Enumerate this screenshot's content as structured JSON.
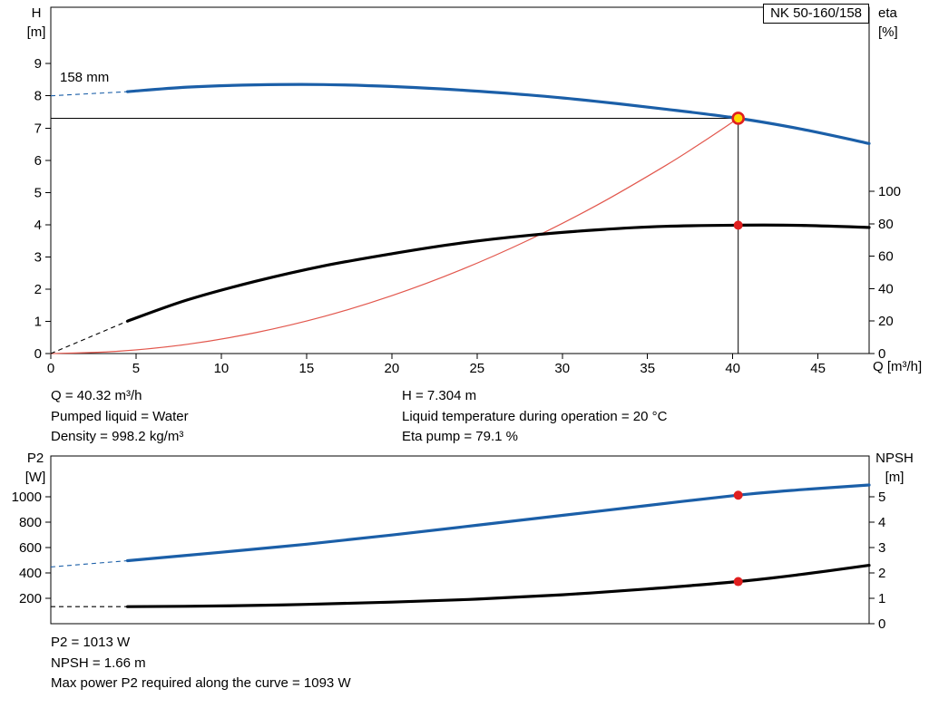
{
  "header": {
    "model_box": "NK 50-160/158"
  },
  "axes_titles": {
    "top_left_line1": "H",
    "top_left_line2": "[m]",
    "top_right_line1": "eta",
    "top_right_line2": "[%]",
    "bottom_left_line1": "P2",
    "bottom_left_line2": "[W]",
    "bottom_right_line1": "NPSH",
    "bottom_right_line2": "[m]",
    "x_label": "Q [m³/h]"
  },
  "annotations": {
    "impeller_diameter": "158 mm"
  },
  "mid_info": {
    "left": [
      "Q = 40.32 m³/h",
      "Pumped liquid = Water",
      "Density = 998.2 kg/m³"
    ],
    "right": [
      "H = 7.304 m",
      "Liquid temperature during operation = 20 °C",
      "Eta pump = 79.1 %"
    ]
  },
  "bottom_info": [
    "P2 = 1013 W",
    "NPSH = 1.66 m",
    "Max power P2 required along the curve = 1093 W"
  ],
  "colors": {
    "curve_blue": "#1b5fa8",
    "curve_black": "#000000",
    "system_red": "#e2574d",
    "dot_red": "#e01f1f",
    "duty_yellow": "#ffd800"
  },
  "chart_data": [
    {
      "type": "line",
      "name": "qh-eta-chart",
      "x": {
        "min": 0,
        "max": 48,
        "ticks": [
          0,
          5,
          10,
          15,
          20,
          25,
          30,
          35,
          40,
          45
        ]
      },
      "y_left": {
        "label": "H [m]",
        "min": 0,
        "max": 10.75,
        "ticks": [
          0,
          1,
          2,
          3,
          4,
          5,
          6,
          7,
          8,
          9
        ]
      },
      "y_right": {
        "label": "eta [%]",
        "min": 0,
        "max": 213.4,
        "ticks": [
          0,
          20,
          40,
          60,
          80,
          100
        ]
      },
      "series": [
        {
          "name": "system-curve",
          "axis": "left",
          "color": "system_red",
          "width": 1.2,
          "points": [
            [
              0,
              0
            ],
            [
              4,
              0.072
            ],
            [
              8,
              0.287
            ],
            [
              12,
              0.646
            ],
            [
              16,
              1.149
            ],
            [
              20,
              1.795
            ],
            [
              24,
              2.585
            ],
            [
              28,
              3.519
            ],
            [
              32,
              4.596
            ],
            [
              36,
              5.817
            ],
            [
              38.2,
              6.553
            ],
            [
              40.32,
              7.304
            ]
          ]
        },
        {
          "name": "efficiency-curve",
          "axis": "right",
          "color": "curve_black",
          "width": 3.2,
          "lead": [
            [
              0,
              0
            ],
            [
              4.5,
              20
            ]
          ],
          "points": [
            [
              4.5,
              20
            ],
            [
              8,
              33
            ],
            [
              12,
              44.5
            ],
            [
              16,
              54
            ],
            [
              20,
              61.5
            ],
            [
              24,
              68
            ],
            [
              28,
              72.8
            ],
            [
              32,
              76.2
            ],
            [
              36,
              78.4
            ],
            [
              40.32,
              79.1
            ],
            [
              44,
              79.0
            ],
            [
              48,
              77.7
            ]
          ]
        },
        {
          "name": "head-curve-158mm",
          "axis": "left",
          "color": "curve_blue",
          "width": 3.2,
          "lead": [
            [
              0,
              8.0
            ],
            [
              4.5,
              8.13
            ]
          ],
          "points": [
            [
              4.5,
              8.13
            ],
            [
              8,
              8.27
            ],
            [
              12,
              8.34
            ],
            [
              16,
              8.35
            ],
            [
              20,
              8.29
            ],
            [
              24,
              8.18
            ],
            [
              28,
              8.03
            ],
            [
              32,
              7.83
            ],
            [
              36,
              7.59
            ],
            [
              40.32,
              7.304
            ],
            [
              44,
              6.97
            ],
            [
              48,
              6.52
            ]
          ]
        }
      ],
      "guides": [
        {
          "type": "h",
          "y": 7.304,
          "x0": 0,
          "x1": 40.32,
          "axis": "left"
        },
        {
          "type": "v",
          "x": 40.32,
          "y0": 0,
          "y1": 7.304,
          "axis": "left"
        }
      ],
      "markers": [
        {
          "name": "eta-point",
          "x": 40.32,
          "y": 79.1,
          "axis": "right",
          "r": 5,
          "fill": "dot_red"
        },
        {
          "name": "duty-point",
          "x": 40.32,
          "y": 7.304,
          "axis": "left",
          "r": 6,
          "fill": "duty_yellow",
          "stroke": "dot_red",
          "stroke_width": 2.6
        }
      ]
    },
    {
      "type": "line",
      "name": "p2-npsh-chart",
      "x": {
        "min": 0,
        "max": 48,
        "ticks": []
      },
      "y_left": {
        "label": "P2 [W]",
        "min": 0,
        "max": 1322,
        "ticks": [
          200,
          400,
          600,
          800,
          1000
        ]
      },
      "y_right": {
        "label": "NPSH [m]",
        "min": 0,
        "max": 6.61,
        "ticks": [
          0,
          1,
          2,
          3,
          4,
          5
        ]
      },
      "series": [
        {
          "name": "p2-curve",
          "axis": "left",
          "color": "curve_blue",
          "width": 3.2,
          "lead": [
            [
              0,
              447
            ],
            [
              4.5,
              497
            ]
          ],
          "points": [
            [
              4.5,
              497
            ],
            [
              10,
              563
            ],
            [
              15,
              627
            ],
            [
              20,
              699
            ],
            [
              25,
              776
            ],
            [
              30,
              854
            ],
            [
              35,
              932
            ],
            [
              40.32,
              1013
            ],
            [
              44,
              1056
            ],
            [
              48,
              1093
            ]
          ]
        },
        {
          "name": "npsh-curve",
          "axis": "right",
          "color": "curve_black",
          "width": 3.2,
          "lead": [
            [
              0,
              0.67
            ],
            [
              4.5,
              0.67
            ]
          ],
          "points": [
            [
              4.5,
              0.67
            ],
            [
              10,
              0.7
            ],
            [
              15,
              0.76
            ],
            [
              20,
              0.85
            ],
            [
              25,
              0.97
            ],
            [
              30,
              1.14
            ],
            [
              35,
              1.37
            ],
            [
              40.32,
              1.66
            ],
            [
              44,
              1.94
            ],
            [
              48,
              2.3
            ]
          ]
        }
      ],
      "guides": [],
      "markers": [
        {
          "name": "p2-point",
          "x": 40.32,
          "y": 1013,
          "axis": "left",
          "r": 5,
          "fill": "dot_red"
        },
        {
          "name": "npsh-point",
          "x": 40.32,
          "y": 1.66,
          "axis": "right",
          "r": 5,
          "fill": "dot_red"
        }
      ]
    }
  ]
}
